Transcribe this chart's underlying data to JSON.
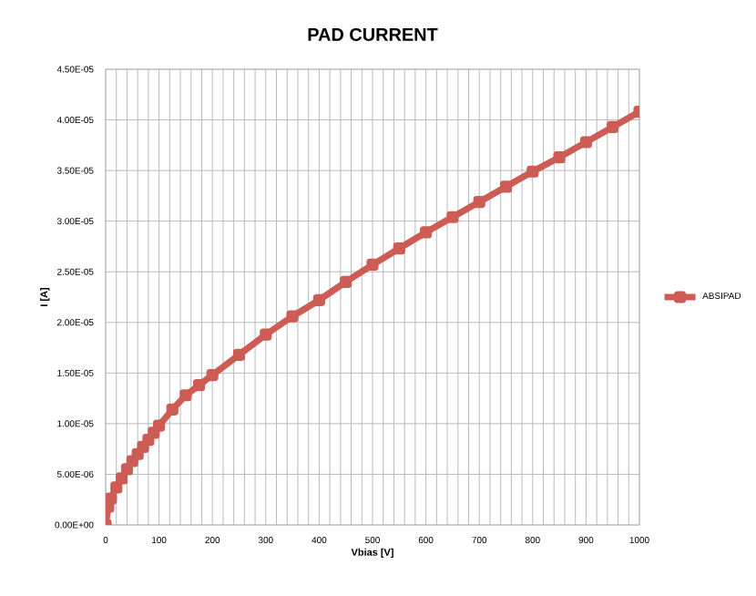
{
  "chart_data": {
    "type": "line",
    "title": "PAD CURRENT",
    "xlabel": "Vbias [V]",
    "ylabel": "I [A]",
    "x": [
      0,
      5,
      10,
      20,
      30,
      40,
      50,
      60,
      70,
      80,
      90,
      100,
      125,
      150,
      175,
      200,
      250,
      300,
      350,
      400,
      450,
      500,
      550,
      600,
      650,
      700,
      750,
      800,
      850,
      900,
      950,
      1000
    ],
    "series": [
      {
        "name": "ABSIPAD",
        "color": "#cd5c55",
        "values": [
          0,
          1.8e-06,
          2.6e-06,
          3.7e-06,
          4.6e-06,
          5.5e-06,
          6.3e-06,
          7e-06,
          7.7e-06,
          8.4e-06,
          9.1e-06,
          9.8e-06,
          1.14e-05,
          1.28e-05,
          1.38e-05,
          1.48e-05,
          1.68e-05,
          1.88e-05,
          2.06e-05,
          2.22e-05,
          2.4e-05,
          2.57e-05,
          2.73e-05,
          2.89e-05,
          3.04e-05,
          3.19e-05,
          3.34e-05,
          3.49e-05,
          3.63e-05,
          3.78e-05,
          3.93e-05,
          4.08e-05
        ]
      }
    ],
    "xlim": [
      0,
      1000
    ],
    "xticks": [
      0,
      {
        "value": 20,
        "label": null
      },
      {
        "value": 40,
        "label": null
      },
      {
        "value": 60,
        "label": null
      },
      {
        "value": 80,
        "label": null
      },
      100,
      {
        "value": 120,
        "label": null
      },
      {
        "value": 140,
        "label": null
      },
      {
        "value": 160,
        "label": null
      },
      {
        "value": 180,
        "label": null
      },
      200,
      {
        "value": 220,
        "label": null
      },
      {
        "value": 240,
        "label": null
      },
      {
        "value": 260,
        "label": null
      },
      {
        "value": 280,
        "label": null
      },
      300,
      {
        "value": 320,
        "label": null
      },
      {
        "value": 340,
        "label": null
      },
      {
        "value": 360,
        "label": null
      },
      {
        "value": 380,
        "label": null
      },
      400,
      {
        "value": 420,
        "label": null
      },
      {
        "value": 440,
        "label": null
      },
      {
        "value": 460,
        "label": null
      },
      {
        "value": 480,
        "label": null
      },
      500,
      {
        "value": 520,
        "label": null
      },
      {
        "value": 540,
        "label": null
      },
      {
        "value": 560,
        "label": null
      },
      {
        "value": 580,
        "label": null
      },
      600,
      {
        "value": 620,
        "label": null
      },
      {
        "value": 640,
        "label": null
      },
      {
        "value": 660,
        "label": null
      },
      {
        "value": 680,
        "label": null
      },
      700,
      {
        "value": 720,
        "label": null
      },
      {
        "value": 740,
        "label": null
      },
      {
        "value": 760,
        "label": null
      },
      {
        "value": 780,
        "label": null
      },
      800,
      {
        "value": 820,
        "label": null
      },
      {
        "value": 840,
        "label": null
      },
      {
        "value": 860,
        "label": null
      },
      {
        "value": 880,
        "label": null
      },
      900,
      {
        "value": 920,
        "label": null
      },
      {
        "value": 940,
        "label": null
      },
      {
        "value": 960,
        "label": null
      },
      {
        "value": 980,
        "label": null
      },
      1000
    ],
    "ylim": [
      0,
      4.5e-05
    ],
    "yticks": [
      {
        "value": 0,
        "label": "0.00E+00"
      },
      {
        "value": 5e-06,
        "label": "5.00E-06"
      },
      {
        "value": 1e-05,
        "label": "1.00E-05"
      },
      {
        "value": 1.5e-05,
        "label": "1.50E-05"
      },
      {
        "value": 2e-05,
        "label": "2.00E-05"
      },
      {
        "value": 2.5e-05,
        "label": "2.50E-05"
      },
      {
        "value": 3e-05,
        "label": "3.00E-05"
      },
      {
        "value": 3.5e-05,
        "label": "3.50E-05"
      },
      {
        "value": 4e-05,
        "label": "4.00E-05"
      },
      {
        "value": 4.5e-05,
        "label": "4.50E-05"
      }
    ],
    "grid": true,
    "legend": "right",
    "marker": "square",
    "line_style": "solid"
  }
}
